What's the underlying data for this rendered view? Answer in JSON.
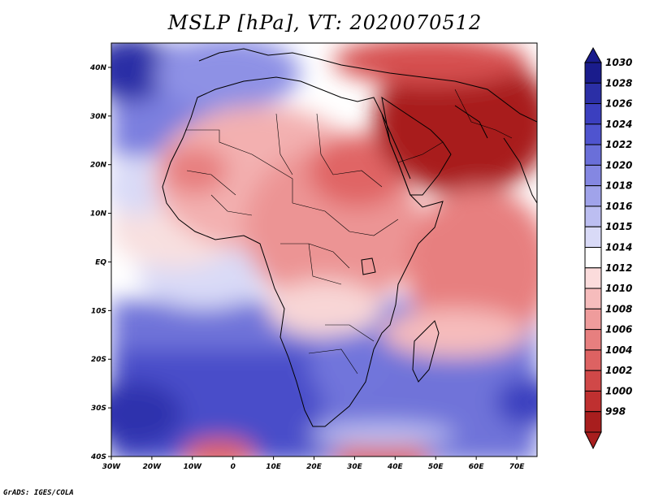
{
  "title": "MSLP [hPa], VT: 2020070512",
  "footer": "GrADS: IGES/COLA",
  "map": {
    "lon_labels": [
      "30W",
      "20W",
      "10W",
      "0",
      "10E",
      "20E",
      "30E",
      "40E",
      "50E",
      "60E",
      "70E"
    ],
    "lat_labels": [
      "40N",
      "30N",
      "20N",
      "10N",
      "EQ",
      "10S",
      "20S",
      "30S",
      "40S"
    ],
    "lon_range": [
      -30,
      75
    ],
    "lat_range": [
      -40,
      45
    ]
  },
  "colorbar": {
    "levels": [
      "1030",
      "1028",
      "1026",
      "1024",
      "1022",
      "1020",
      "1018",
      "1016",
      "1015",
      "1014",
      "1012",
      "1010",
      "1008",
      "1006",
      "1004",
      "1002",
      "1000",
      "998"
    ],
    "colors": [
      "#1a1c8c",
      "#2b2fa6",
      "#3b3fbf",
      "#4f54cf",
      "#6a6fd9",
      "#8487e2",
      "#a0a3ea",
      "#bcbef1",
      "#d9daf7",
      "#ffffff",
      "#fbdcdc",
      "#f6bcbc",
      "#ef9c9c",
      "#e77f7f",
      "#dd6262",
      "#d04848",
      "#bf3030",
      "#a81e1e"
    ]
  }
}
